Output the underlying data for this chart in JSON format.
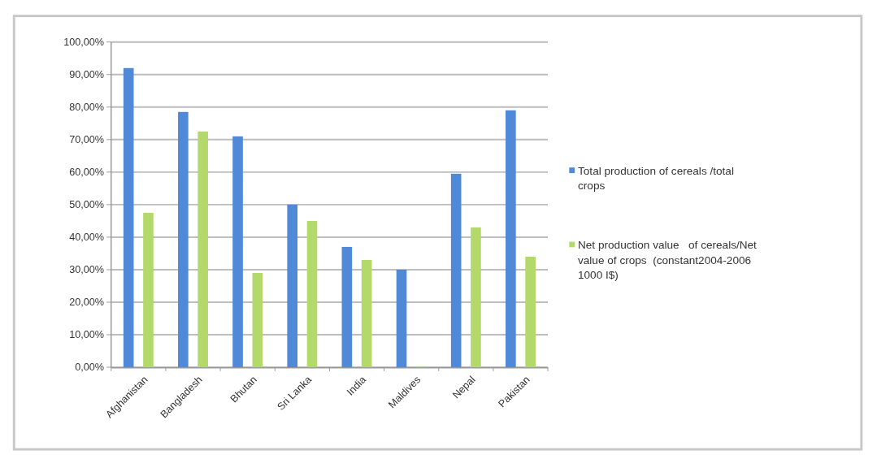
{
  "chart_data": {
    "type": "bar",
    "categories": [
      "Afghanistan",
      "Bangladesh",
      "Bhutan",
      "Sri Lanka",
      "India",
      "Maldives",
      "Nepal",
      "Pakistan"
    ],
    "series": [
      {
        "name": "Total production of cereals /total crops",
        "color": "#5089d8",
        "values": [
          92,
          78.5,
          71,
          50,
          37,
          30,
          59.5,
          79
        ]
      },
      {
        "name": "Net production value   of cereals/Net value of crops  (constant2004-2006 1000 I$)",
        "color": "#b3d96a",
        "values": [
          47.5,
          72.5,
          29,
          45,
          33,
          0.3,
          43,
          34
        ]
      }
    ],
    "ylim": [
      0,
      100
    ],
    "yticks": [
      {
        "value": 0,
        "label": "0,00%"
      },
      {
        "value": 10,
        "label": "10,00%"
      },
      {
        "value": 20,
        "label": "20,00%"
      },
      {
        "value": 30,
        "label": "30,00%"
      },
      {
        "value": 40,
        "label": "40,00%"
      },
      {
        "value": 50,
        "label": "50,00%"
      },
      {
        "value": 60,
        "label": "60,00%"
      },
      {
        "value": 70,
        "label": "70,00%"
      },
      {
        "value": 80,
        "label": "80,00%"
      },
      {
        "value": 90,
        "label": "90,00%"
      },
      {
        "value": 100,
        "label": "100,00%"
      }
    ],
    "grid": "y",
    "legend": "right"
  }
}
